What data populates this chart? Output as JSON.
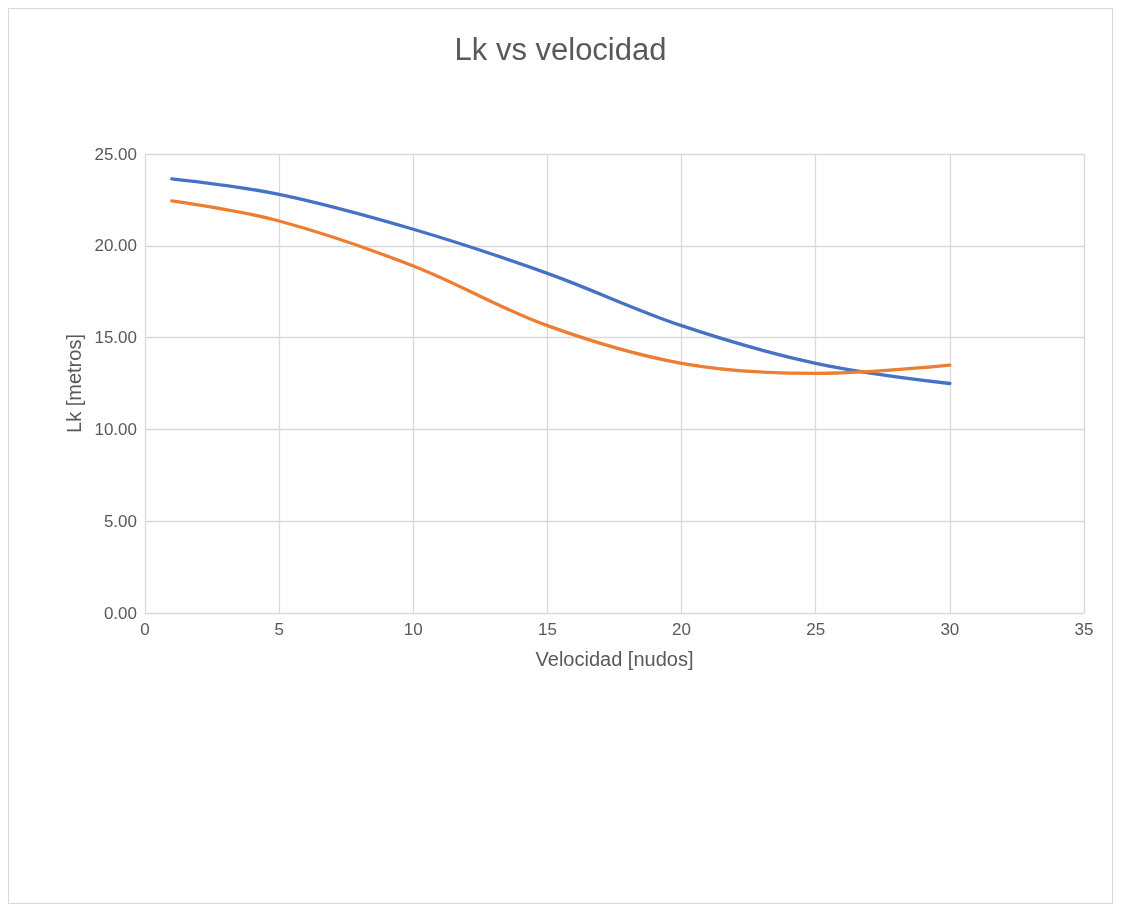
{
  "chart_data": {
    "type": "line",
    "title": "Lk vs velocidad",
    "xlabel": "Velocidad [nudos]",
    "ylabel": "Lk [metros]",
    "x": [
      1,
      5,
      10,
      15,
      20,
      25,
      30
    ],
    "series": [
      {
        "color": "#4472c4",
        "values": [
          23.65,
          22.8,
          20.9,
          18.5,
          15.65,
          13.6,
          12.5
        ]
      },
      {
        "color": "#ed7d31",
        "values": [
          22.45,
          21.35,
          18.9,
          15.65,
          13.6,
          13.05,
          13.5
        ]
      }
    ],
    "xlim": [
      0,
      35
    ],
    "xticks": [
      0,
      5,
      10,
      15,
      20,
      25,
      30,
      35
    ],
    "ylim": [
      0,
      25
    ],
    "yticks": [
      {
        "value": 0,
        "label": "0.00"
      },
      {
        "value": 5,
        "label": "5.00"
      },
      {
        "value": 10,
        "label": "10.00"
      },
      {
        "value": 15,
        "label": "15.00"
      },
      {
        "value": 20,
        "label": "20.00"
      },
      {
        "value": 25,
        "label": "25.00"
      }
    ],
    "grid": true,
    "marker": "none",
    "line_style": "solid"
  }
}
